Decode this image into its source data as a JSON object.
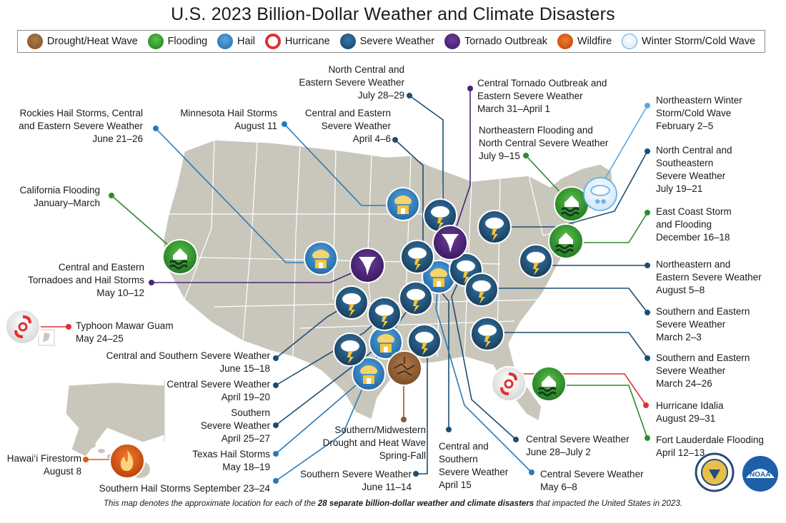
{
  "title": "U.S. 2023 Billion-Dollar Weather and Climate Disasters",
  "legend": [
    {
      "label": "Drought/Heat Wave",
      "icon": "drought-icon",
      "color": "#8a5a32"
    },
    {
      "label": "Flooding",
      "icon": "flooding-icon",
      "color": "#2e8b2e"
    },
    {
      "label": "Hail",
      "icon": "hail-icon",
      "color": "#2a7ab8"
    },
    {
      "label": "Hurricane",
      "icon": "hurricane-icon",
      "color": "#d32f2f"
    },
    {
      "label": "Severe Weather",
      "icon": "severe-weather-icon",
      "color": "#1c4e73"
    },
    {
      "label": "Tornado Outbreak",
      "icon": "tornado-icon",
      "color": "#4a2574"
    },
    {
      "label": "Wildfire",
      "icon": "wildfire-icon",
      "color": "#e0581c"
    },
    {
      "label": "Winter Storm/Cold Wave",
      "icon": "winter-storm-icon",
      "color": "#5aa9e6"
    }
  ],
  "colors": {
    "land": "#c9c6bc",
    "state_border": "#ffffff",
    "severe": "#1c4e73",
    "hail": "#2a7ab8",
    "flood": "#2e8b2e",
    "tornado": "#4a2574",
    "hurricane": "#e03030",
    "drought": "#8a5a32",
    "wildfire": "#e0581c",
    "winter": "#5aa9e6"
  },
  "events": {
    "rockies": {
      "lines": [
        "Rockies Hail Storms, Central",
        "and Eastern Severe Weather",
        "June 21–26"
      ]
    },
    "minnesota": {
      "lines": [
        "Minnesota Hail Storms",
        "August 11"
      ]
    },
    "ce_apr": {
      "lines": [
        "Central and Eastern",
        "Severe Weather",
        "April 4–6"
      ]
    },
    "nce_jul": {
      "lines": [
        "North Central and",
        "Eastern Severe Weather",
        "July 28–29"
      ]
    },
    "cto": {
      "lines": [
        "Central Tornado Outbreak and",
        "Eastern Severe Weather",
        "March 31–April 1"
      ]
    },
    "ne_flood": {
      "lines": [
        "Northeastern Flooding and",
        "North Central Severe Weather",
        "July 9–15"
      ]
    },
    "ne_winter": {
      "lines": [
        "Northeastern Winter",
        "Storm/Cold Wave",
        "February 2–5"
      ]
    },
    "ncse": {
      "lines": [
        "North Central and",
        "Southeastern",
        "Severe Weather",
        "July 19–21"
      ]
    },
    "east_coast": {
      "lines": [
        "East Coast Storm",
        "and Flooding",
        "December 16–18"
      ]
    },
    "ne_severe": {
      "lines": [
        "Northeastern and",
        "Eastern Severe Weather",
        "August 5–8"
      ]
    },
    "se_mar2": {
      "lines": [
        "Southern and Eastern",
        "Severe Weather",
        "March 2–3"
      ]
    },
    "se_mar24": {
      "lines": [
        "Southern and Eastern",
        "Severe Weather",
        "March 24–26"
      ]
    },
    "idalia": {
      "lines": [
        "Hurricane Idalia",
        "August 29–31"
      ]
    },
    "ftl": {
      "lines": [
        "Fort Lauderdale Flooding",
        "April 12–13"
      ]
    },
    "ca_flood": {
      "lines": [
        "California Flooding",
        "January–March"
      ]
    },
    "ce_tornado": {
      "lines": [
        "Central and Eastern",
        "Tornadoes and Hail Storms",
        "May 10–12"
      ]
    },
    "mawar": {
      "lines": [
        "Typhoon Mawar Guam",
        "May 24–25"
      ]
    },
    "cs_jun15": {
      "lines": [
        "Central and Southern Severe Weather",
        "June 15–18"
      ]
    },
    "c_apr19": {
      "lines": [
        "Central Severe Weather",
        "April 19–20"
      ]
    },
    "s_apr25": {
      "lines": [
        "Southern",
        "Severe Weather",
        "April 25–27"
      ]
    },
    "tx_hail": {
      "lines": [
        "Texas Hail Storms",
        "May 18–19"
      ]
    },
    "s_hail_sep": {
      "lines": [
        "Southern Hail Storms September 23–24"
      ]
    },
    "drought": {
      "lines": [
        "Southern/Midwestern",
        "Drought and Heat Wave",
        "Spring-Fall"
      ]
    },
    "s_jun11": {
      "lines": [
        "Southern Severe Weather",
        "June 11–14"
      ]
    },
    "cs_apr15": {
      "lines": [
        "Central and",
        "Southern",
        "Severe Weather",
        "April 15"
      ]
    },
    "c_jun28": {
      "lines": [
        "Central Severe Weather",
        "June 28–July 2"
      ]
    },
    "c_may6": {
      "lines": [
        "Central Severe Weather",
        "May 6–8"
      ]
    },
    "hawaii": {
      "lines": [
        "Hawai‘i Firestorm",
        "August 8"
      ]
    }
  },
  "footnote": {
    "prefix": "This map denotes the approximate location for each of the ",
    "bold": "28 separate billion-dollar weather and climate disasters",
    "suffix": " that impacted the United States in 2023."
  },
  "logos": [
    "commerce-seal-icon",
    "noaa-logo-icon"
  ]
}
